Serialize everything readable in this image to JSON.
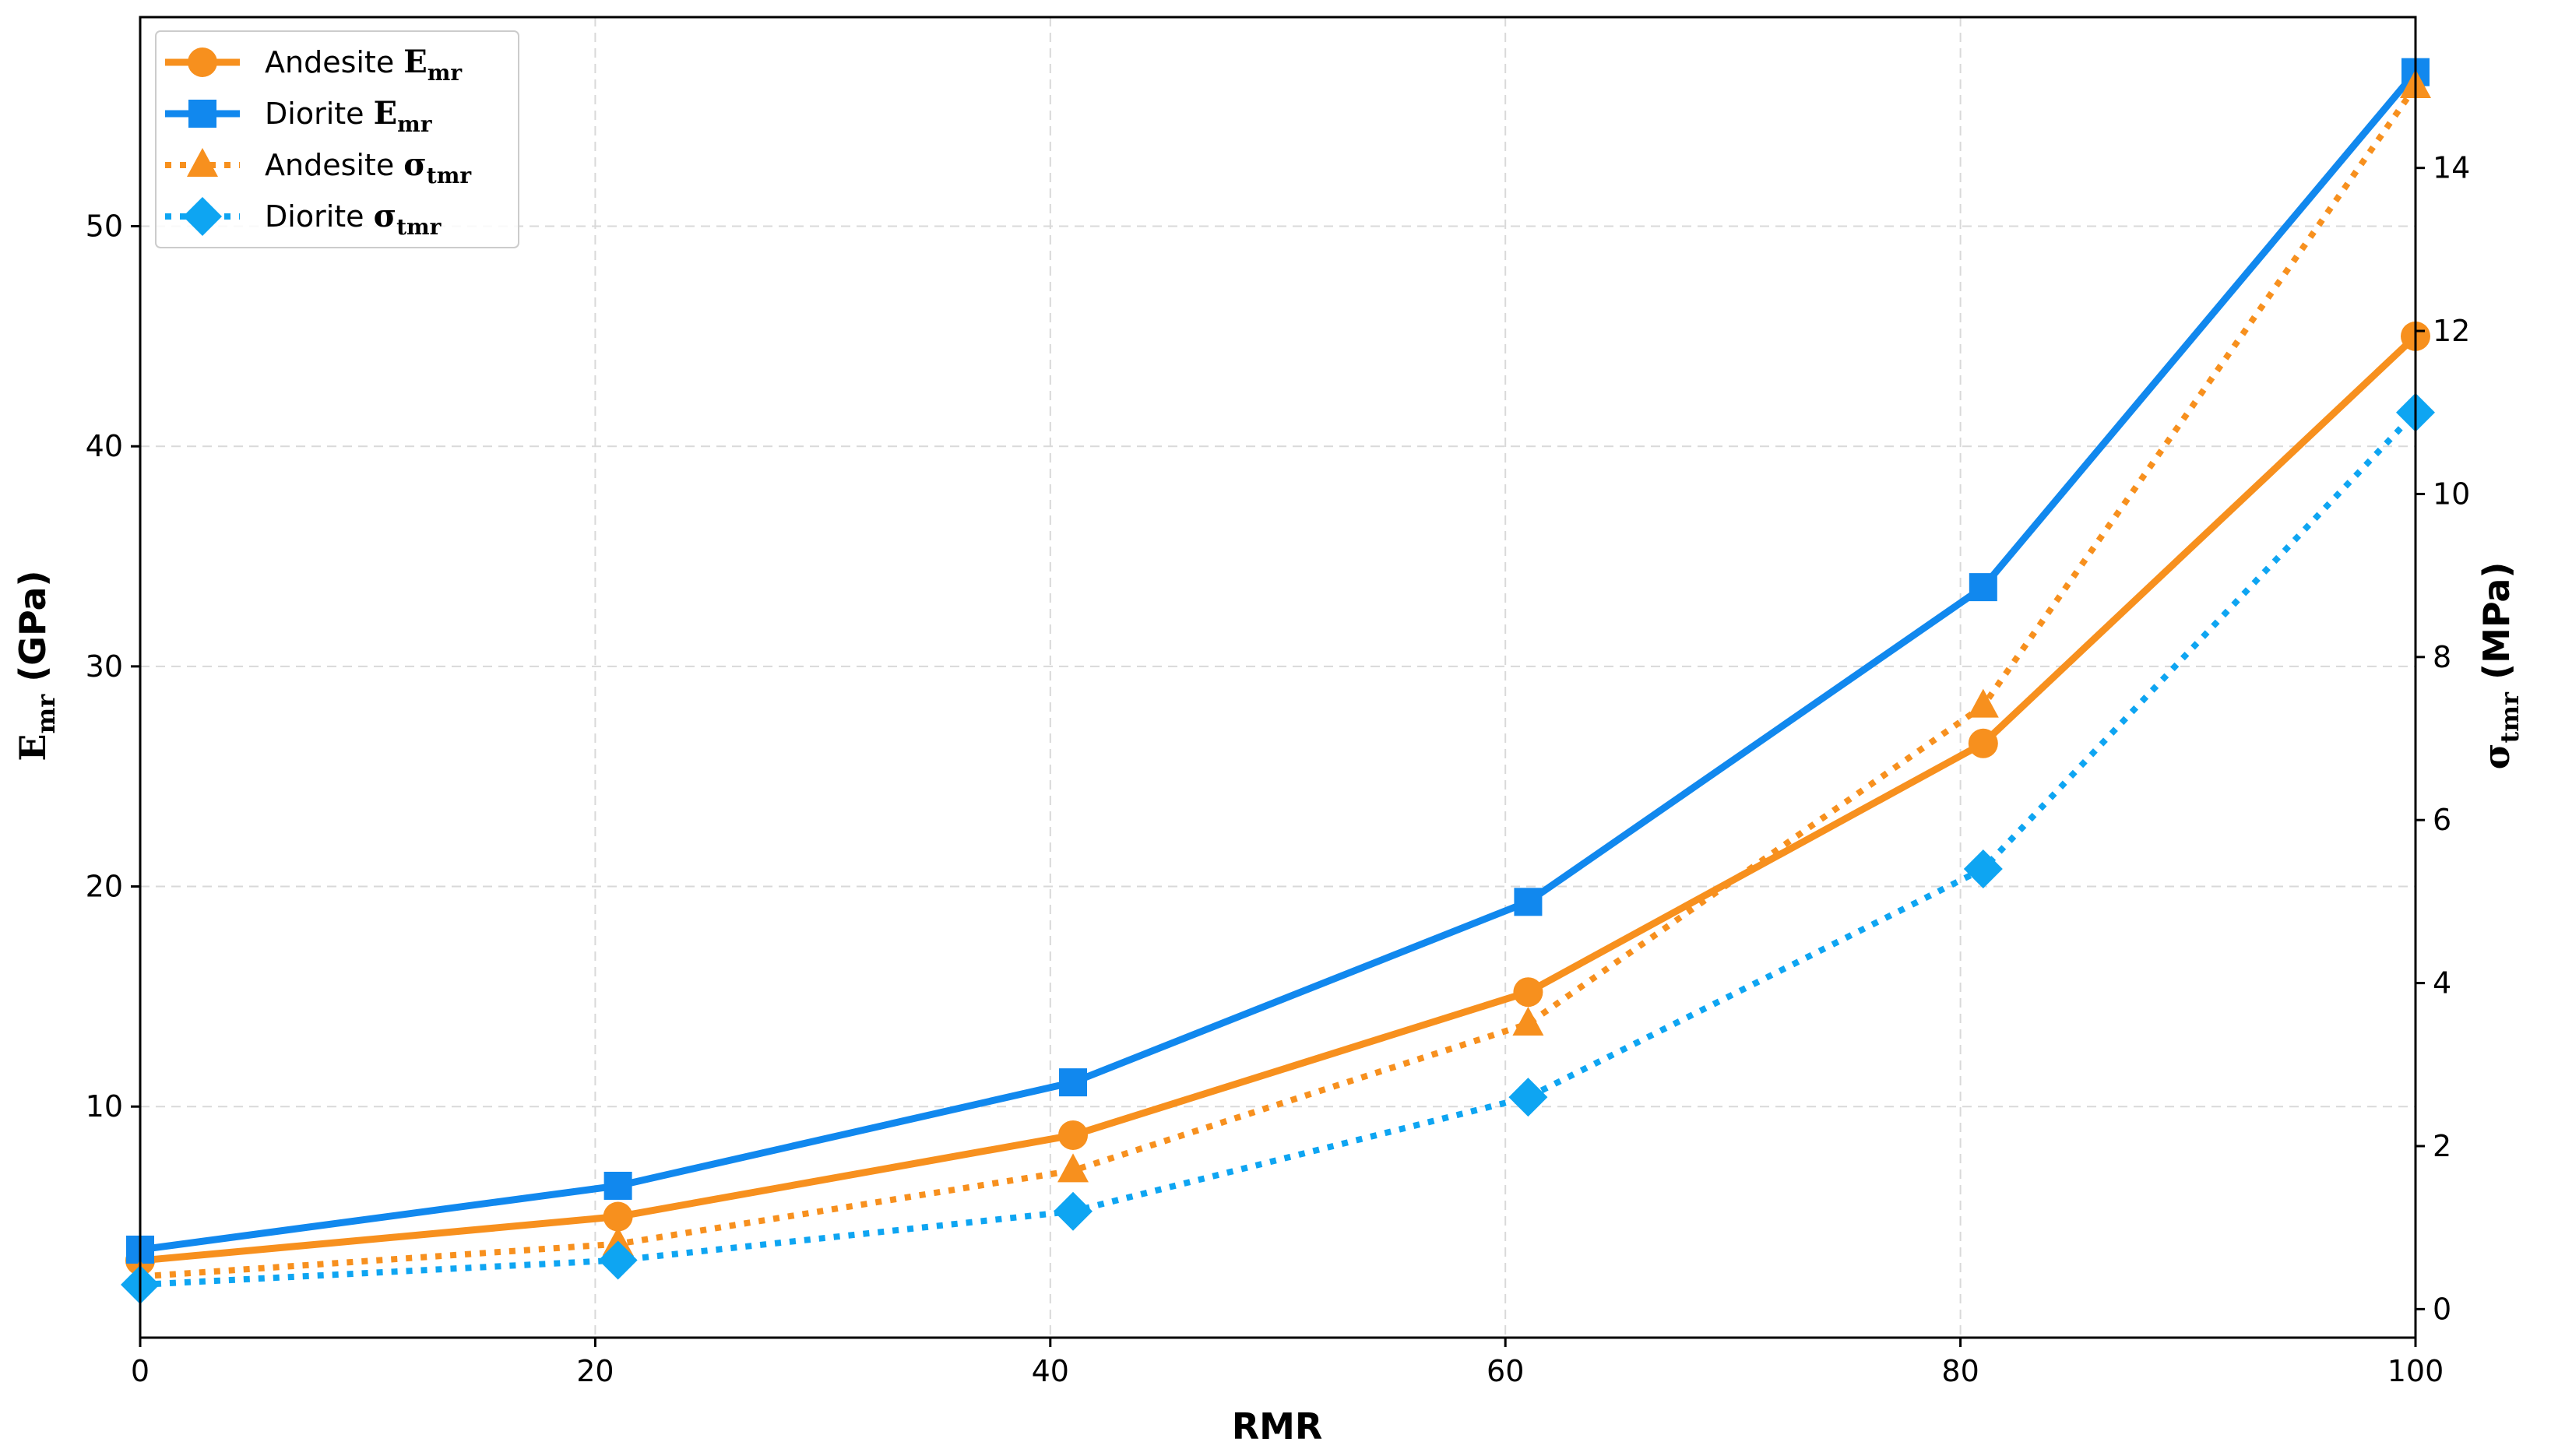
{
  "chart_data": {
    "type": "line",
    "x": [
      0,
      21,
      41,
      61,
      81,
      100
    ],
    "xlabel": "RMR",
    "xlim": [
      0,
      100
    ],
    "xticks": [
      0,
      20,
      40,
      60,
      80,
      100
    ],
    "ylabel_left": {
      "main": "E",
      "sub": "mr",
      "unit": " (GPa)"
    },
    "ylabel_right": {
      "main": "σ",
      "sub": "tmr",
      "unit": " (MPa)"
    },
    "ylim_left": [
      -0.5,
      59.5
    ],
    "yticks_left": [
      10,
      20,
      30,
      40,
      50
    ],
    "ylim_right": [
      -0.35,
      15.85
    ],
    "yticks_right": [
      0,
      2,
      4,
      6,
      8,
      10,
      12,
      14
    ],
    "grid": true,
    "legend_position": "top-left",
    "series": [
      {
        "name": "Andesite",
        "sub": "mr",
        "sym": "E",
        "axis": "left",
        "color": "#f7901e",
        "style": "solid",
        "marker": "circle",
        "values": [
          3.0,
          5.0,
          8.7,
          15.2,
          26.5,
          45.0
        ]
      },
      {
        "name": "Diorite",
        "sub": "mr",
        "sym": "E",
        "axis": "left",
        "color": "#1188ee",
        "style": "solid",
        "marker": "square",
        "values": [
          3.5,
          6.4,
          11.1,
          19.3,
          33.6,
          57.0
        ]
      },
      {
        "name": "Andesite",
        "sub": "tmr",
        "sym": "σ",
        "axis": "right",
        "color": "#f7901e",
        "style": "dotted",
        "marker": "triangle",
        "values": [
          0.4,
          0.8,
          1.7,
          3.5,
          7.4,
          15.0
        ]
      },
      {
        "name": "Diorite",
        "sub": "tmr",
        "sym": "σ",
        "axis": "right",
        "color": "#0ea5f2",
        "style": "dotted",
        "marker": "diamond",
        "values": [
          0.3,
          0.6,
          1.2,
          2.6,
          5.4,
          11.0
        ]
      }
    ]
  }
}
